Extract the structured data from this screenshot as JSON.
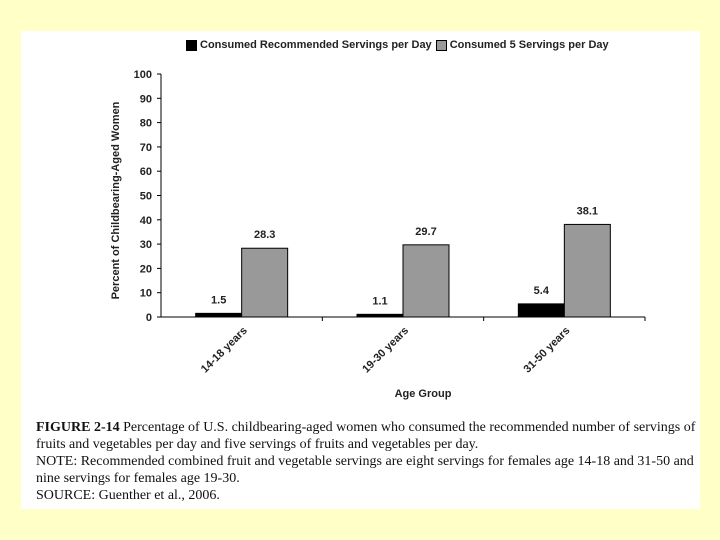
{
  "chart_data": {
    "type": "bar",
    "categories": [
      "14-18 years",
      "19-30 years",
      "31-50 years"
    ],
    "series": [
      {
        "name": "Consumed Recommended Servings per Day",
        "values": [
          1.5,
          1.1,
          5.4
        ],
        "color": "#000000"
      },
      {
        "name": "Consumed 5 Servings per Day",
        "values": [
          28.3,
          29.7,
          38.1
        ],
        "color": "#999999"
      }
    ],
    "data_labels": [
      [
        "1.5",
        "1.1",
        "5.4"
      ],
      [
        "28.3",
        "29.7",
        "38.1"
      ]
    ],
    "xlabel": "Age Group",
    "ylabel": "Percent of Childbearing-Aged Women",
    "ylim": [
      0,
      100
    ],
    "yticks": [
      0,
      10,
      20,
      30,
      40,
      50,
      60,
      70,
      80,
      90,
      100
    ],
    "grid": false,
    "legend": "top"
  },
  "caption": {
    "label": "FIGURE 2-14",
    "text": "Percentage of U.S. childbearing-aged women who consumed the recommended number of servings of fruits and vegetables per day and five servings of fruits and vegetables per day.",
    "note": "NOTE: Recommended combined fruit and vegetable servings are eight servings for females age 14-18 and 31-50 and nine servings for females age 19-30.",
    "source": "SOURCE: Guenther et al., 2006."
  }
}
